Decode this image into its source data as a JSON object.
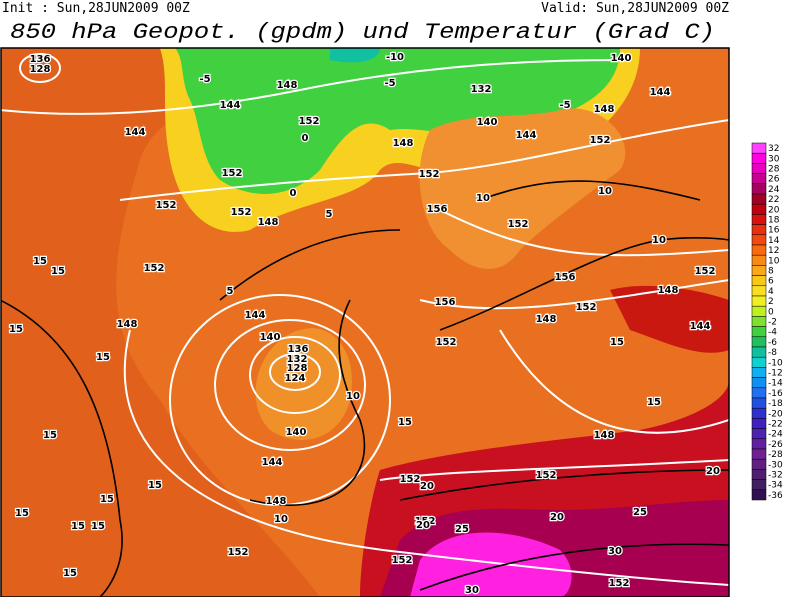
{
  "header": {
    "init": "Init : Sun,28JUN2009 00Z",
    "valid": "Valid: Sun,28JUN2009 00Z",
    "title": "850 hPa Geopot. (gpdm) und Temperatur (Grad C)"
  },
  "colorbar": {
    "values": [
      32,
      30,
      28,
      26,
      24,
      22,
      20,
      18,
      16,
      14,
      12,
      10,
      8,
      6,
      4,
      2,
      0,
      -2,
      -4,
      -6,
      -8,
      -10,
      -12,
      -14,
      -16,
      -18,
      -20,
      -22,
      -24,
      -26,
      -28,
      -30,
      -32,
      -34,
      -36
    ],
    "colors": [
      "#ff40ff",
      "#ff00e0",
      "#e800c0",
      "#c80090",
      "#a80060",
      "#a00028",
      "#c00010",
      "#d81010",
      "#e83010",
      "#f04a10",
      "#f86a10",
      "#f88a18",
      "#f8a818",
      "#f8c818",
      "#f8e020",
      "#f0f020",
      "#c0f020",
      "#80e030",
      "#40d040",
      "#20c060",
      "#10c0a0",
      "#10d0d0",
      "#10b0f0",
      "#1090f0",
      "#2070f0",
      "#2050e0",
      "#3030d0",
      "#4020c0",
      "#5020b0",
      "#6020a0",
      "#702090",
      "#602080",
      "#502070",
      "#402060",
      "#301050"
    ]
  },
  "contour_labels": [
    "136",
    "128",
    "144",
    "144",
    "148",
    "152",
    "152",
    "152",
    "148",
    "148",
    "152",
    "132",
    "140",
    "144",
    "148",
    "152",
    "140",
    "144",
    "156",
    "152",
    "156",
    "152",
    "148",
    "152",
    "144",
    "148",
    "156",
    "152",
    "144",
    "140",
    "136",
    "132",
    "128",
    "124",
    "140",
    "144",
    "148",
    "152",
    "152",
    "152",
    "148",
    "152",
    "152",
    "152",
    "152",
    "152",
    "148",
    "0",
    "0",
    "-5",
    "-5",
    "-5",
    "-10",
    "5",
    "5",
    "10",
    "10",
    "10",
    "10",
    "15",
    "15",
    "15",
    "15",
    "15",
    "15",
    "15",
    "15",
    "15",
    "20",
    "20",
    "20",
    "20",
    "25",
    "25",
    "30",
    "30",
    "10",
    "15",
    "15",
    "15",
    "15",
    "15"
  ]
}
